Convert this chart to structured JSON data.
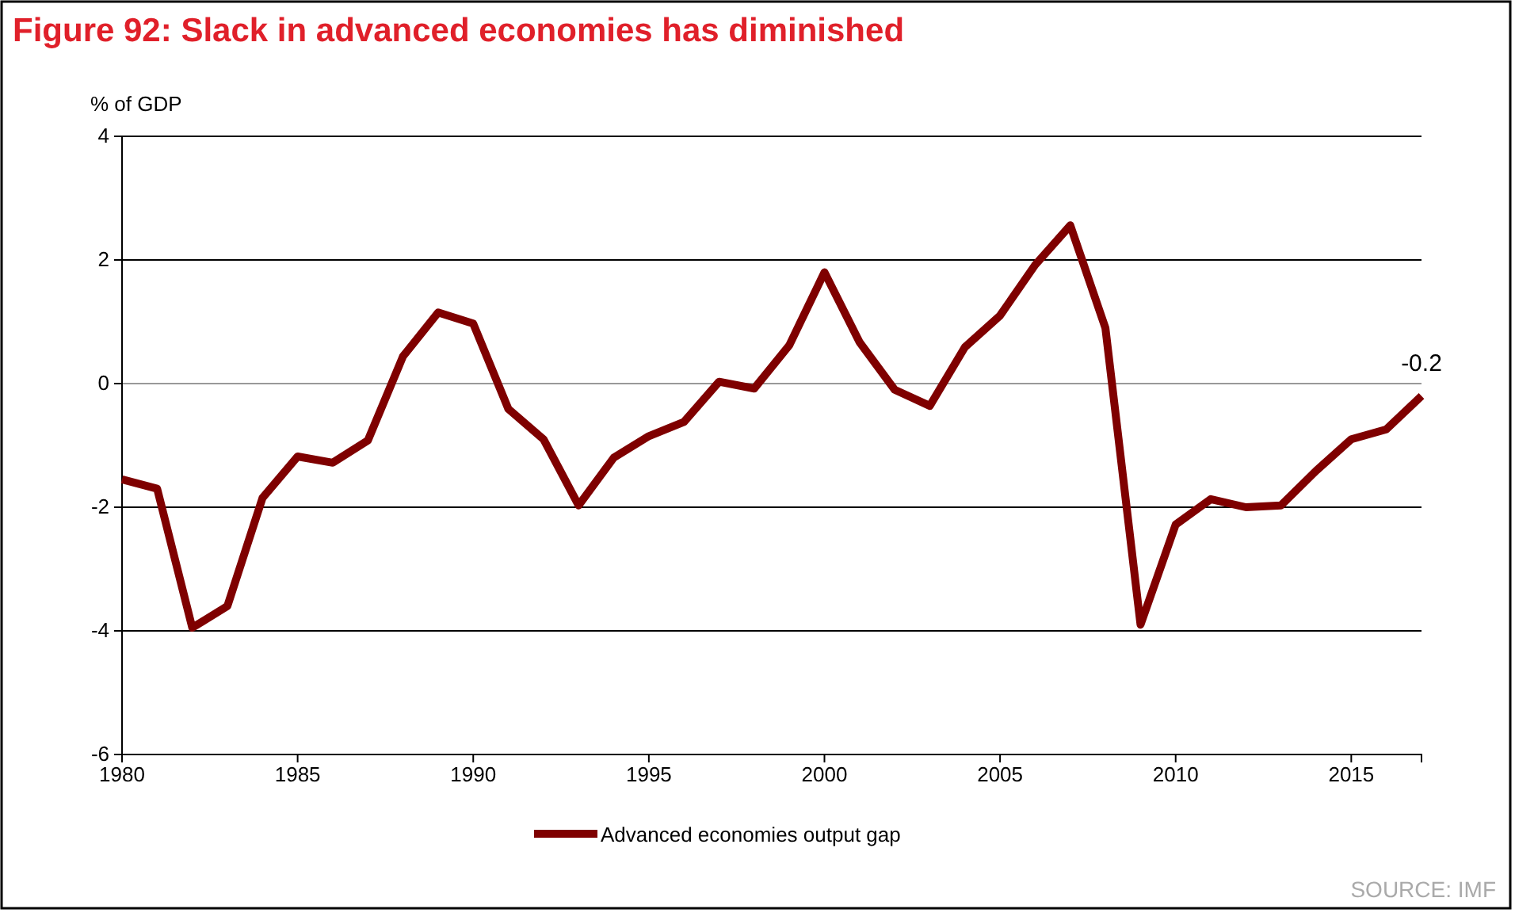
{
  "chart_data": {
    "type": "line",
    "title": "Figure 92: Slack in advanced economies has diminished",
    "ylabel": "% of GDP",
    "x": [
      1980,
      1981,
      1982,
      1983,
      1984,
      1985,
      1986,
      1987,
      1988,
      1989,
      1990,
      1991,
      1992,
      1993,
      1994,
      1995,
      1996,
      1997,
      1998,
      1999,
      2000,
      2001,
      2002,
      2003,
      2004,
      2005,
      2006,
      2007,
      2008,
      2009,
      2010,
      2011,
      2012,
      2013,
      2014,
      2015,
      2016,
      2017
    ],
    "series": [
      {
        "name": "Advanced economies output gap",
        "color": "#7f0000",
        "values": [
          -1.55,
          -1.7,
          -3.95,
          -3.6,
          -1.85,
          -1.18,
          -1.28,
          -0.92,
          0.44,
          1.15,
          0.97,
          -0.41,
          -0.9,
          -1.97,
          -1.2,
          -0.85,
          -0.62,
          0.03,
          -0.08,
          0.62,
          1.8,
          0.67,
          -0.1,
          -0.36,
          0.59,
          1.1,
          1.92,
          2.56,
          0.9,
          -3.9,
          -2.28,
          -1.87,
          -2.0,
          -1.97,
          -1.41,
          -0.9,
          -0.74,
          -0.2
        ]
      }
    ],
    "xlim": [
      1980,
      2017
    ],
    "xticks": [
      1980,
      1985,
      1990,
      1995,
      2000,
      2005,
      2010,
      2015
    ],
    "ylim": [
      -6,
      4
    ],
    "yticks": [
      -6,
      -4,
      -2,
      0,
      2,
      4
    ],
    "grid": "y",
    "legend": "bottom",
    "marker": "none",
    "line_style": "solid",
    "annotations": [
      {
        "text": "-0.2",
        "x": 2017,
        "y": -0.2
      },
      "SOURCE: IMF"
    ]
  }
}
